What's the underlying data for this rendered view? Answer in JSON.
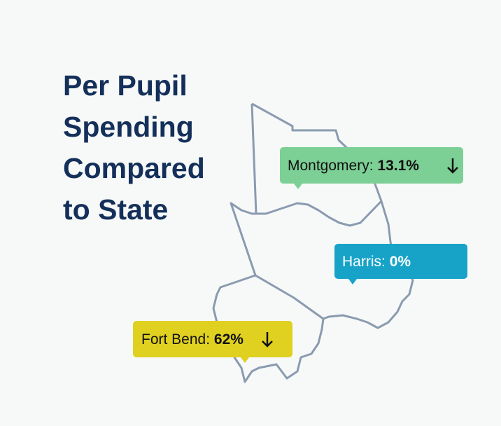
{
  "title": {
    "lines": [
      "Per Pupil",
      "Spending",
      "Compared",
      "to State"
    ]
  },
  "labels": [
    {
      "county": "Montgomery:",
      "value": "13.1%"
    },
    {
      "county": "Harris:",
      "value": "0%"
    },
    {
      "county": "Fort Bend:",
      "value": "62%"
    }
  ]
}
